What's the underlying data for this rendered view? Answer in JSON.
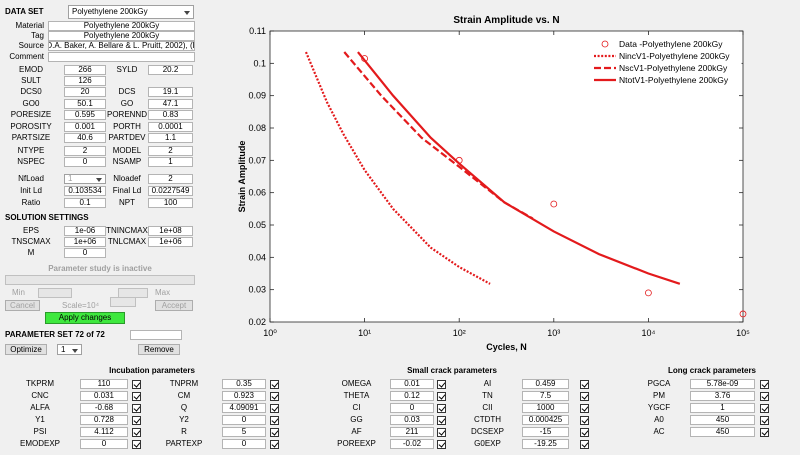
{
  "left_panel": {
    "data_set": {
      "label": "DATA SET",
      "value": "Polyethylene 200kGy"
    },
    "info": [
      {
        "label": "Material",
        "value": "Polyethylene 200kGy"
      },
      {
        "label": "Tag",
        "value": "Polyethylene 200kGy"
      },
      {
        "label": "Source",
        "value": "(D.A. Baker, A. Bellare & L. Pruitt, 2002), (L."
      },
      {
        "label": "Comment"
      }
    ],
    "params": [
      [
        {
          "label": "EMOD",
          "value": "266"
        },
        {
          "label": "SYLD",
          "value": "20.2"
        }
      ],
      [
        {
          "label": "SULT",
          "value": "126"
        }
      ],
      [
        {
          "label": "DCS0",
          "value": "20"
        },
        {
          "label": "DCS",
          "value": "19.1"
        }
      ],
      [
        {
          "label": "GO0",
          "value": "50.1"
        },
        {
          "label": "GO",
          "value": "47.1"
        }
      ],
      [
        {
          "label": "PORESIZE",
          "value": "0.595"
        },
        {
          "label": "PORENND",
          "value": "0.83"
        }
      ],
      [
        {
          "label": "POROSITY",
          "value": "0.001"
        },
        {
          "label": "PORTH",
          "value": "0.0001"
        }
      ],
      [
        {
          "label": "PARTSIZE",
          "value": "40.6"
        },
        {
          "label": "PARTDEV",
          "value": "1.1"
        }
      ],
      [
        {
          "label": "NTYPE",
          "value": "2"
        },
        {
          "label": "MODEL",
          "value": "2"
        }
      ],
      [
        {
          "label": "NSPEC",
          "value": "0"
        },
        {
          "label": "NSAMP",
          "value": "1"
        }
      ],
      [
        {
          "label": "NfLoad",
          "value": "1"
        },
        {
          "label": "Nloadef",
          "value": "2"
        }
      ],
      [
        {
          "label": "Init Ld",
          "value": "0.103534"
        },
        {
          "label": "Final Ld",
          "value": "0.0227549"
        }
      ],
      [
        {
          "label": "Ratio",
          "value": "0.1"
        },
        {
          "label": "NPT",
          "value": "100"
        }
      ]
    ],
    "solution_settings": {
      "title": "SOLUTION SETTINGS",
      "rows": [
        [
          {
            "label": "EPS",
            "value": "1e-06"
          },
          {
            "label": "TNINCMAX",
            "value": "1e+08"
          }
        ],
        [
          {
            "label": "TNSCMAX",
            "value": "1e+06"
          },
          {
            "label": "TNLCMAX",
            "value": "1e+06"
          }
        ],
        [
          {
            "label": "M",
            "value": "0"
          }
        ]
      ]
    },
    "parameter_study": {
      "status": "Parameter study is inactive",
      "min": "Min",
      "max": "Max",
      "cancel": "Cancel",
      "scale": "Scale=10⁴",
      "accept": "Accept",
      "apply": "Apply changes"
    },
    "parameter_set": {
      "label": "PARAMETER SET 72 of 72",
      "optimize": "Optimize",
      "select": "1",
      "remove": "Remove"
    }
  },
  "chart_data": {
    "type": "line",
    "title": "Strain Amplitude vs. N",
    "x_label": "Cycles, N",
    "y_label": "Strain Amplitude",
    "xscale": "log",
    "xlim": [
      1,
      100000
    ],
    "xticks": [
      {
        "value": 1,
        "label": "10⁰"
      },
      {
        "value": 10,
        "label": "10¹"
      },
      {
        "value": 100,
        "label": "10²"
      },
      {
        "value": 1000,
        "label": "10³"
      },
      {
        "value": 10000,
        "label": "10⁴"
      },
      {
        "value": 100000,
        "label": "10⁵"
      }
    ],
    "ylim": [
      0.02,
      0.11
    ],
    "yticks": [
      0.02,
      0.03,
      0.04,
      0.05,
      0.06,
      0.07,
      0.08,
      0.09,
      0.1,
      0.11
    ],
    "legend": "upper right",
    "series": [
      {
        "name": "Data -Polyethylene 200kGy",
        "type": "scatter",
        "color": "#e31a1c",
        "x": [
          10,
          100,
          1000,
          10000,
          100000
        ],
        "values": [
          0.1015,
          0.07,
          0.0565,
          0.029,
          0.0225
        ]
      },
      {
        "name": "NincV1-Polyethylene 200kGy",
        "type": "line",
        "style": "dotted",
        "color": "#e31a1c",
        "x": [
          2.4,
          4,
          6,
          10,
          20,
          50,
          100,
          212
        ],
        "values": [
          0.1035,
          0.088,
          0.078,
          0.067,
          0.055,
          0.043,
          0.037,
          0.0318
        ]
      },
      {
        "name": "NscV1-Polyethylene 200kGy",
        "type": "line",
        "style": "dashed",
        "color": "#e31a1c",
        "x": [
          6.1,
          15,
          40,
          100,
          300,
          600
        ],
        "values": [
          0.1035,
          0.09,
          0.077,
          0.068,
          0.057,
          0.052
        ]
      },
      {
        "name": "NtotV1-Polyethylene 200kGy",
        "type": "line",
        "style": "solid",
        "color": "#e31a1c",
        "x": [
          8.5,
          20,
          50,
          100,
          300,
          1000,
          3000,
          10000,
          21500
        ],
        "values": [
          0.1035,
          0.09,
          0.077,
          0.069,
          0.057,
          0.048,
          0.041,
          0.035,
          0.0318
        ]
      }
    ]
  },
  "bottom_groups": [
    {
      "title": "Incubation parameters",
      "rows": [
        [
          {
            "label": "TKPRM",
            "value": "110"
          },
          {
            "label": "TNPRM",
            "value": "0.35"
          }
        ],
        [
          {
            "label": "CNC",
            "value": "0.031"
          },
          {
            "label": "CM",
            "value": "0.923"
          }
        ],
        [
          {
            "label": "ALFA",
            "value": "-0.68"
          },
          {
            "label": "Q",
            "value": "4.09091"
          }
        ],
        [
          {
            "label": "Y1",
            "value": "0.728"
          },
          {
            "label": "Y2",
            "value": "0"
          }
        ],
        [
          {
            "label": "PSI",
            "value": "4.112"
          },
          {
            "label": "R",
            "value": "5"
          }
        ],
        [
          {
            "label": "EMODEXP",
            "value": "0"
          },
          {
            "label": "PARTEXP",
            "value": "0"
          }
        ]
      ]
    },
    {
      "title": "Small crack parameters",
      "rows": [
        [
          {
            "label": "OMEGA",
            "value": "0.01"
          },
          {
            "label": "AI",
            "value": "0.459"
          }
        ],
        [
          {
            "label": "THETA",
            "value": "0.12"
          },
          {
            "label": "TN",
            "value": "7.5"
          }
        ],
        [
          {
            "label": "CI",
            "value": "0"
          },
          {
            "label": "CII",
            "value": "1000"
          }
        ],
        [
          {
            "label": "GG",
            "value": "0.03"
          },
          {
            "label": "CTDTH",
            "value": "0.000425"
          }
        ],
        [
          {
            "label": "AF",
            "value": "211"
          },
          {
            "label": "DCSEXP",
            "value": "-15"
          }
        ],
        [
          {
            "label": "POREEXP",
            "value": "-0.02"
          },
          {
            "label": "G0EXP",
            "value": "-19.25"
          }
        ]
      ]
    },
    {
      "title": "Long crack parameters",
      "rows": [
        [
          {
            "label": "PGCA",
            "value": "5.78e-09"
          }
        ],
        [
          {
            "label": "PM",
            "value": "3.76"
          }
        ],
        [
          {
            "label": "YGCF",
            "value": "1"
          }
        ],
        [
          {
            "label": "A0",
            "value": "450"
          }
        ],
        [
          {
            "label": "AC",
            "value": "450"
          }
        ]
      ]
    }
  ]
}
